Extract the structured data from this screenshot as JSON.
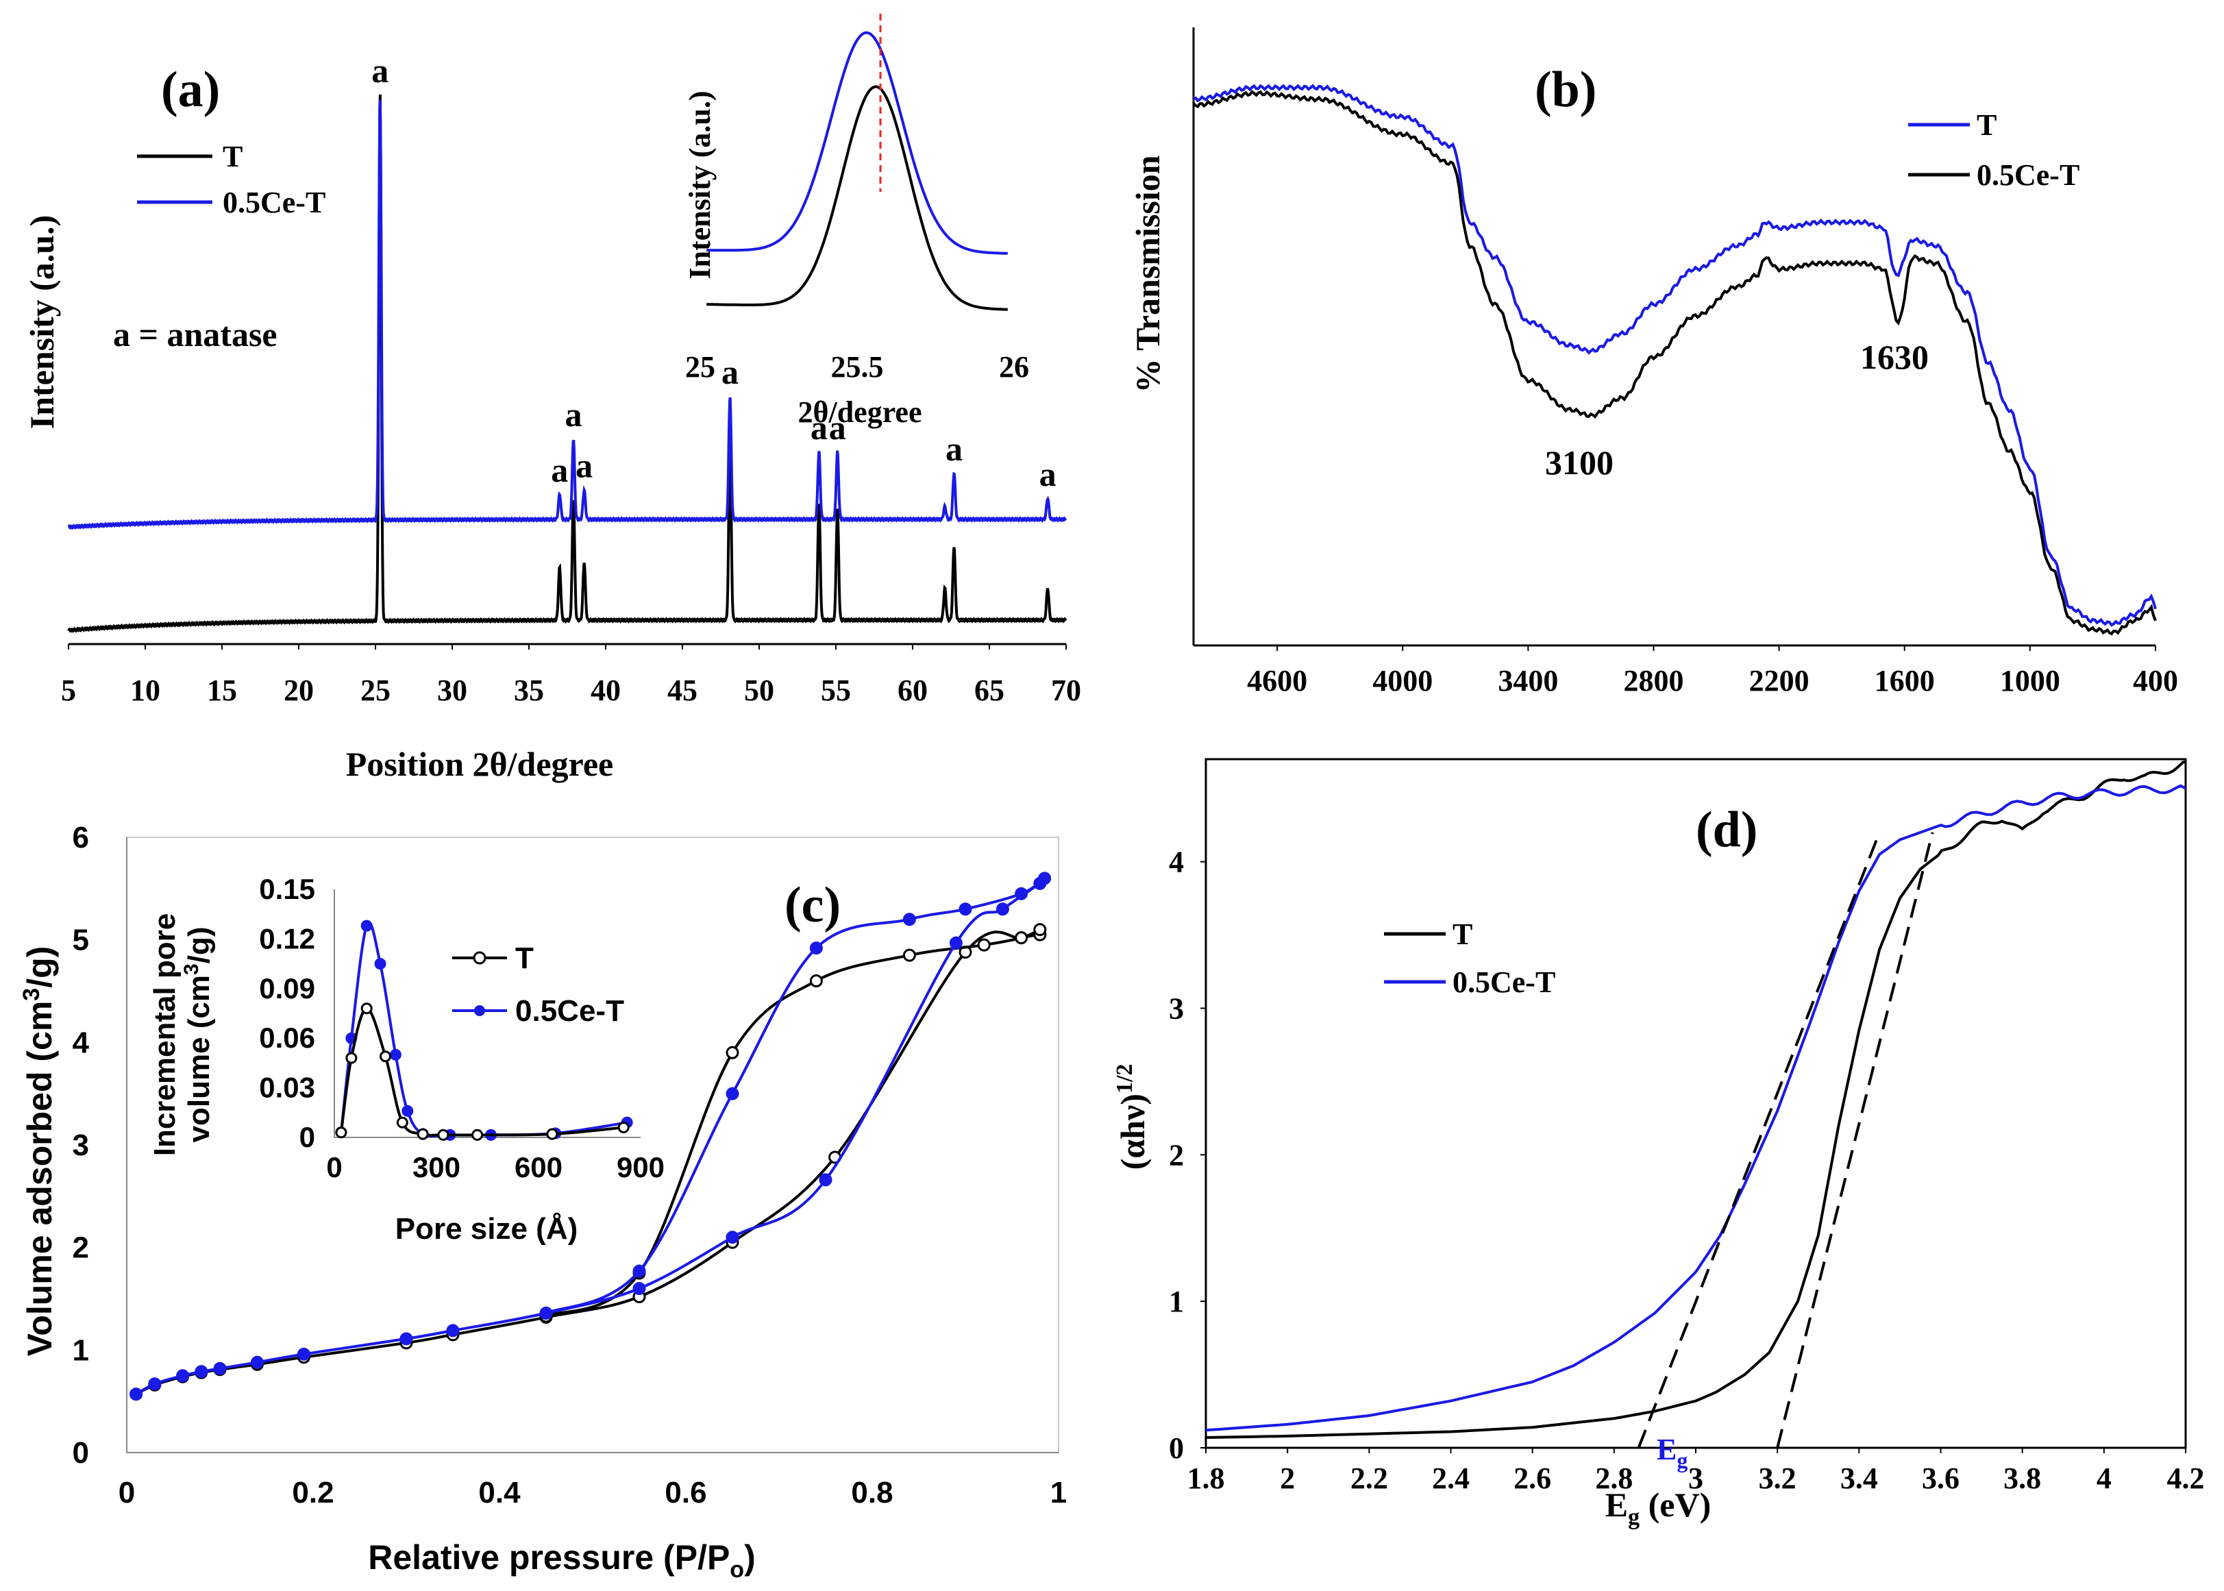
{
  "chart_data": [
    {
      "panel": "(a)",
      "type": "line",
      "xlabel": "Position 2θ/degree",
      "ylabel": "Intensity (a.u.)",
      "xlim": [
        5,
        70
      ],
      "xticks": [
        5,
        10,
        15,
        20,
        25,
        30,
        35,
        40,
        45,
        50,
        55,
        60,
        65,
        70
      ],
      "annotation": "a = anatase",
      "peak_label": "a",
      "series": [
        {
          "name": "T",
          "color": "#000000",
          "peaks": [
            {
              "x": 25.3,
              "h": 1.0
            },
            {
              "x": 37.0,
              "h": 0.1
            },
            {
              "x": 37.9,
              "h": 0.23
            },
            {
              "x": 38.6,
              "h": 0.11
            },
            {
              "x": 48.1,
              "h": 0.34
            },
            {
              "x": 53.9,
              "h": 0.22
            },
            {
              "x": 55.1,
              "h": 0.21
            },
            {
              "x": 62.1,
              "h": 0.06
            },
            {
              "x": 62.7,
              "h": 0.14
            },
            {
              "x": 68.8,
              "h": 0.06
            }
          ]
        },
        {
          "name": "0.5Ce-T",
          "color": "#1a1ae6",
          "peaks": [
            {
              "x": 25.3,
              "h": 1.0
            },
            {
              "x": 37.0,
              "h": 0.06
            },
            {
              "x": 37.9,
              "h": 0.19
            },
            {
              "x": 38.6,
              "h": 0.07
            },
            {
              "x": 48.1,
              "h": 0.29
            },
            {
              "x": 53.9,
              "h": 0.16
            },
            {
              "x": 55.1,
              "h": 0.16
            },
            {
              "x": 62.1,
              "h": 0.03
            },
            {
              "x": 62.7,
              "h": 0.11
            },
            {
              "x": 68.8,
              "h": 0.05
            }
          ]
        }
      ],
      "peak_labels_at": [
        25.3,
        37.0,
        37.9,
        38.6,
        48.1,
        53.9,
        55.1,
        62.7,
        68.8
      ],
      "inset": {
        "xlabel": "2θ/degree",
        "ylabel": "Intensity (a.u.)",
        "xlim": [
          25,
          26
        ],
        "xticks": [
          25,
          25.5,
          26
        ],
        "reference_line_x": 25.56,
        "peak_center": {
          "0.5Ce-T": 25.53,
          "T": 25.56
        }
      }
    },
    {
      "panel": "(b)",
      "type": "line",
      "xlabel": "",
      "ylabel": "% Transmission",
      "xlim": [
        5000,
        400
      ],
      "xticks": [
        4600,
        4000,
        3400,
        2800,
        2200,
        1600,
        1000,
        400
      ],
      "annotations": [
        "3100",
        "1630"
      ],
      "series": [
        {
          "name": "T",
          "color": "#1a1ae6",
          "points": [
            [
              5000,
              0.93
            ],
            [
              4700,
              0.95
            ],
            [
              4400,
              0.95
            ],
            [
              4000,
              0.9
            ],
            [
              3760,
              0.85
            ],
            [
              3680,
              0.72
            ],
            [
              3560,
              0.66
            ],
            [
              3400,
              0.55
            ],
            [
              3200,
              0.51
            ],
            [
              3100,
              0.5
            ],
            [
              2950,
              0.53
            ],
            [
              2800,
              0.58
            ],
            [
              2600,
              0.64
            ],
            [
              2400,
              0.68
            ],
            [
              2300,
              0.7
            ],
            [
              2270,
              0.72
            ],
            [
              2200,
              0.71
            ],
            [
              2000,
              0.72
            ],
            [
              1800,
              0.72
            ],
            [
              1700,
              0.71
            ],
            [
              1640,
              0.63
            ],
            [
              1560,
              0.69
            ],
            [
              1450,
              0.68
            ],
            [
              1300,
              0.6
            ],
            [
              1200,
              0.48
            ],
            [
              1100,
              0.4
            ],
            [
              1000,
              0.3
            ],
            [
              900,
              0.15
            ],
            [
              800,
              0.06
            ],
            [
              700,
              0.04
            ],
            [
              600,
              0.035
            ],
            [
              500,
              0.05
            ],
            [
              420,
              0.08
            ],
            [
              400,
              0.06
            ]
          ]
        },
        {
          "name": "0.5Ce-T",
          "color": "#000000",
          "points": [
            [
              5000,
              0.92
            ],
            [
              4700,
              0.94
            ],
            [
              4400,
              0.93
            ],
            [
              4000,
              0.87
            ],
            [
              3760,
              0.82
            ],
            [
              3680,
              0.68
            ],
            [
              3560,
              0.58
            ],
            [
              3400,
              0.45
            ],
            [
              3200,
              0.4
            ],
            [
              3100,
              0.39
            ],
            [
              2950,
              0.42
            ],
            [
              2800,
              0.49
            ],
            [
              2600,
              0.56
            ],
            [
              2400,
              0.61
            ],
            [
              2300,
              0.63
            ],
            [
              2270,
              0.66
            ],
            [
              2200,
              0.64
            ],
            [
              2000,
              0.65
            ],
            [
              1800,
              0.65
            ],
            [
              1700,
              0.64
            ],
            [
              1630,
              0.55
            ],
            [
              1560,
              0.66
            ],
            [
              1450,
              0.65
            ],
            [
              1300,
              0.55
            ],
            [
              1200,
              0.41
            ],
            [
              1100,
              0.33
            ],
            [
              1000,
              0.26
            ],
            [
              900,
              0.13
            ],
            [
              800,
              0.04
            ],
            [
              700,
              0.025
            ],
            [
              600,
              0.02
            ],
            [
              500,
              0.04
            ],
            [
              420,
              0.06
            ],
            [
              400,
              0.04
            ]
          ]
        }
      ]
    },
    {
      "panel": "(c)",
      "type": "line",
      "xlabel": "Relative pressure (P/Po)",
      "ylabel": "Volume adsorbed (cm3/g)",
      "xlim": [
        0,
        1
      ],
      "ylim": [
        0,
        6
      ],
      "xticks": [
        "0",
        "0.2",
        "0.4",
        "0.6",
        "0.8",
        "1"
      ],
      "yticks": [
        "0",
        "1",
        "2",
        "3",
        "4",
        "5",
        "6"
      ],
      "series": [
        {
          "name": "T",
          "color": "#000000",
          "adsorption": [
            [
              0.01,
              0.57
            ],
            [
              0.03,
              0.66
            ],
            [
              0.06,
              0.74
            ],
            [
              0.08,
              0.78
            ],
            [
              0.1,
              0.81
            ],
            [
              0.14,
              0.86
            ],
            [
              0.19,
              0.93
            ],
            [
              0.3,
              1.07
            ],
            [
              0.35,
              1.15
            ],
            [
              0.45,
              1.32
            ],
            [
              0.55,
              1.52
            ],
            [
              0.65,
              2.05
            ],
            [
              0.76,
              2.88
            ],
            [
              0.9,
              4.88
            ],
            [
              0.96,
              5.02
            ],
            [
              0.98,
              5.05
            ]
          ],
          "desorption": [
            [
              0.98,
              5.1
            ],
            [
              0.96,
              5.02
            ],
            [
              0.92,
              4.95
            ],
            [
              0.84,
              4.85
            ],
            [
              0.74,
              4.6
            ],
            [
              0.65,
              3.9
            ],
            [
              0.55,
              1.75
            ],
            [
              0.45,
              1.33
            ]
          ]
        },
        {
          "name": "0.5Ce-T",
          "color": "#1a1ae6",
          "adsorption": [
            [
              0.01,
              0.57
            ],
            [
              0.03,
              0.67
            ],
            [
              0.06,
              0.75
            ],
            [
              0.08,
              0.79
            ],
            [
              0.1,
              0.82
            ],
            [
              0.14,
              0.88
            ],
            [
              0.19,
              0.96
            ],
            [
              0.3,
              1.11
            ],
            [
              0.35,
              1.19
            ],
            [
              0.45,
              1.36
            ],
            [
              0.55,
              1.6
            ],
            [
              0.65,
              2.1
            ],
            [
              0.75,
              2.66
            ],
            [
              0.89,
              4.97
            ],
            [
              0.94,
              5.3
            ],
            [
              0.98,
              5.55
            ]
          ],
          "desorption": [
            [
              0.985,
              5.6
            ],
            [
              0.96,
              5.45
            ],
            [
              0.9,
              5.3
            ],
            [
              0.84,
              5.2
            ],
            [
              0.74,
              4.92
            ],
            [
              0.65,
              3.5
            ],
            [
              0.55,
              1.77
            ],
            [
              0.45,
              1.36
            ]
          ]
        }
      ],
      "inset": {
        "xlabel": "Pore size (Å)",
        "ylabel_line1": "Incremental pore",
        "ylabel_line2": "volume (cm3/g)",
        "xlim": [
          0,
          900
        ],
        "ylim": [
          0,
          0.15
        ],
        "xticks": [
          "0",
          "300",
          "600",
          "900"
        ],
        "yticks": [
          "0",
          "0.03",
          "0.06",
          "0.09",
          "0.12",
          "0.15"
        ],
        "series": [
          {
            "name": "T",
            "points": [
              [
                20,
                0.003
              ],
              [
                50,
                0.048
              ],
              [
                95,
                0.078
              ],
              [
                150,
                0.049
              ],
              [
                200,
                0.009
              ],
              [
                260,
                0.002
              ],
              [
                320,
                0.0015
              ],
              [
                420,
                0.0015
              ],
              [
                640,
                0.002
              ],
              [
                850,
                0.006
              ]
            ]
          },
          {
            "name": "0.5Ce-T",
            "points": [
              [
                20,
                0.003
              ],
              [
                50,
                0.06
              ],
              [
                95,
                0.128
              ],
              [
                135,
                0.105
              ],
              [
                180,
                0.05
              ],
              [
                215,
                0.016
              ],
              [
                260,
                0.002
              ],
              [
                340,
                0.0015
              ],
              [
                460,
                0.0015
              ],
              [
                650,
                0.0025
              ],
              [
                860,
                0.009
              ]
            ]
          }
        ]
      }
    },
    {
      "panel": "(d)",
      "type": "line",
      "xlabel": "Eg (eV)",
      "ylabel": "(αhν)1/2",
      "xlim": [
        1.8,
        4.2
      ],
      "ylim": [
        0,
        4.7
      ],
      "xticks": [
        "1.8",
        "2",
        "2.2",
        "2.4",
        "2.6",
        "2.8",
        "3",
        "3.2",
        "3.4",
        "3.6",
        "3.8",
        "4",
        "4.2"
      ],
      "yticks": [
        "0",
        "1",
        "2",
        "3",
        "4"
      ],
      "eg_label": "E",
      "eg_sub": "g",
      "series": [
        {
          "name": "T",
          "color": "#000000",
          "points": [
            [
              1.8,
              0.07
            ],
            [
              2.0,
              0.08
            ],
            [
              2.4,
              0.11
            ],
            [
              2.6,
              0.14
            ],
            [
              2.8,
              0.2
            ],
            [
              2.9,
              0.25
            ],
            [
              3.0,
              0.32
            ],
            [
              3.05,
              0.38
            ],
            [
              3.12,
              0.5
            ],
            [
              3.18,
              0.65
            ],
            [
              3.25,
              1.0
            ],
            [
              3.3,
              1.45
            ],
            [
              3.35,
              2.2
            ],
            [
              3.4,
              2.85
            ],
            [
              3.45,
              3.4
            ],
            [
              3.5,
              3.75
            ],
            [
              3.55,
              3.95
            ],
            [
              3.62,
              4.1
            ],
            [
              3.7,
              4.25
            ],
            [
              3.75,
              4.3
            ],
            [
              3.8,
              4.2
            ],
            [
              3.85,
              4.35
            ],
            [
              3.95,
              4.45
            ],
            [
              4.0,
              4.52
            ],
            [
              4.05,
              4.58
            ],
            [
              4.1,
              4.57
            ],
            [
              4.15,
              4.62
            ],
            [
              4.2,
              4.68
            ]
          ],
          "tangent": [
            [
              3.2,
              0.0
            ],
            [
              3.58,
              4.2
            ]
          ]
        },
        {
          "name": "0.5Ce-T",
          "color": "#1a1ae6",
          "points": [
            [
              1.8,
              0.12
            ],
            [
              2.0,
              0.16
            ],
            [
              2.2,
              0.22
            ],
            [
              2.4,
              0.32
            ],
            [
              2.6,
              0.45
            ],
            [
              2.7,
              0.56
            ],
            [
              2.8,
              0.72
            ],
            [
              2.9,
              0.92
            ],
            [
              3.0,
              1.2
            ],
            [
              3.06,
              1.45
            ],
            [
              3.12,
              1.8
            ],
            [
              3.2,
              2.3
            ],
            [
              3.28,
              2.9
            ],
            [
              3.35,
              3.45
            ],
            [
              3.4,
              3.8
            ],
            [
              3.45,
              4.05
            ],
            [
              3.5,
              4.15
            ],
            [
              3.55,
              4.2
            ],
            [
              3.6,
              4.25
            ],
            [
              3.7,
              4.33
            ],
            [
              3.8,
              4.4
            ],
            [
              3.9,
              4.45
            ],
            [
              4.0,
              4.47
            ],
            [
              4.1,
              4.49
            ],
            [
              4.2,
              4.5
            ]
          ],
          "tangent": [
            [
              2.86,
              0.0
            ],
            [
              3.45,
              4.2
            ]
          ]
        }
      ]
    }
  ],
  "panel_a": {
    "label": "(a)",
    "legend": [
      "T",
      "0.5Ce-T"
    ]
  },
  "panel_b": {
    "label": "(b)",
    "legend": [
      "T",
      "0.5Ce-T"
    ]
  },
  "panel_c": {
    "label": "(c)",
    "legend": [
      "T",
      "0.5Ce-T"
    ]
  },
  "panel_d": {
    "label": "(d)",
    "legend": [
      "T",
      "0.5Ce-T"
    ]
  },
  "colors": {
    "black": "#000000",
    "blue": "#1a1ae6",
    "red": "#ee2222"
  }
}
